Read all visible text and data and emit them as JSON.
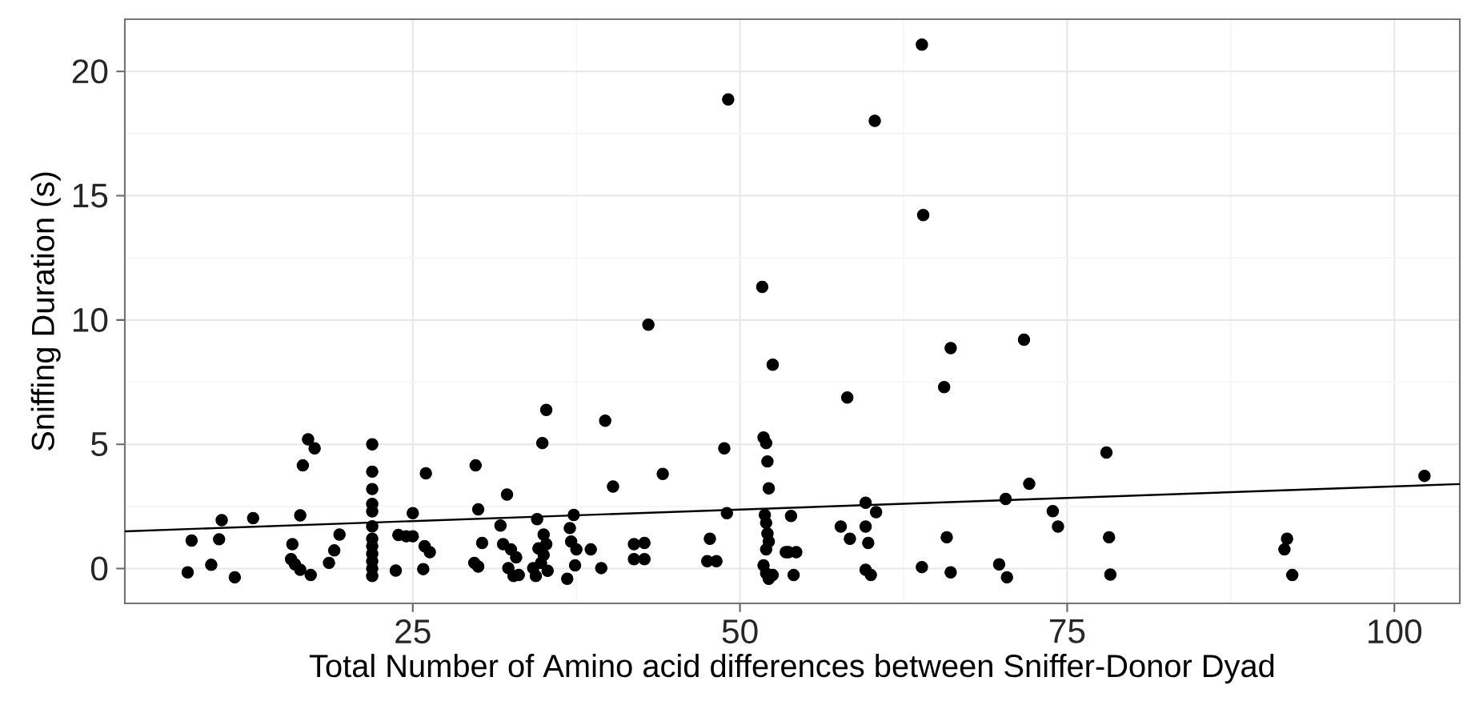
{
  "chart_data": {
    "type": "scatter",
    "xlabel": "Total Number of Amino acid differences between Sniffer-Donor Dyad",
    "ylabel": "Sniffing Duration (s)",
    "xlim": [
      3,
      105
    ],
    "ylim": [
      -1.4,
      22.1
    ],
    "xticks": [
      25,
      50,
      75,
      100
    ],
    "yticks": [
      0,
      5,
      10,
      15,
      20
    ],
    "grid": true,
    "marker": "circle",
    "series": [
      {
        "color": "#000000",
        "x": [
          7.8,
          8.1,
          9.6,
          10.2,
          10.4,
          11.4,
          12.8,
          15.8,
          15.7,
          16.0,
          16.4,
          16.6,
          17.0,
          17.5,
          16.4,
          17.2,
          18.6,
          19.0,
          19.4,
          21.9,
          21.9,
          21.9,
          21.9,
          21.9,
          21.9,
          21.9,
          21.9,
          21.9,
          21.9,
          21.9,
          21.9,
          23.7,
          23.9,
          24.5,
          25.0,
          25.0,
          26.0,
          25.8,
          25.9,
          26.3,
          29.8,
          30.0,
          30.3,
          29.7,
          30.0,
          31.7,
          32.2,
          31.9,
          32.3,
          32.7,
          33.1,
          32.9,
          32.5,
          34.5,
          34.9,
          35.2,
          34.2,
          34.4,
          34.8,
          35.0,
          35.2,
          35.0,
          35.3,
          34.6,
          37.3,
          37.0,
          37.1,
          37.5,
          37.4,
          36.8,
          38.6,
          39.4,
          39.7,
          40.3,
          41.9,
          42.7,
          41.9,
          42.7,
          44.1,
          47.7,
          47.5,
          48.2,
          48.8,
          49.0,
          51.8,
          52.0,
          52.1,
          52.2,
          51.9,
          52.0,
          52.1,
          52.2,
          52.0,
          51.8,
          52.0,
          52.2,
          53.5,
          63.9,
          49.1,
          60.3,
          64.0,
          51.7,
          43.0,
          52.5,
          66.1,
          71.7,
          65.6,
          53.9,
          53.7,
          54.3,
          54.1,
          52.5,
          58.2,
          57.7,
          58.4,
          59.6,
          60.4,
          59.6,
          59.8,
          59.6,
          60.0,
          63.9,
          65.8,
          66.1,
          69.8,
          70.4,
          70.3,
          72.1,
          73.9,
          74.3,
          78.0,
          78.2,
          78.3,
          91.8,
          91.6,
          92.2,
          102.3
        ],
        "values": [
          -0.15,
          1.13,
          0.15,
          1.18,
          1.95,
          -0.35,
          2.03,
          0.98,
          0.38,
          0.17,
          2.14,
          4.15,
          5.2,
          4.84,
          -0.05,
          -0.26,
          0.23,
          0.73,
          1.37,
          5.0,
          3.9,
          3.2,
          2.6,
          2.3,
          1.7,
          1.2,
          0.9,
          0.6,
          0.3,
          0.0,
          -0.3,
          -0.08,
          1.35,
          1.3,
          2.23,
          1.3,
          3.83,
          -0.02,
          0.9,
          0.66,
          4.15,
          2.38,
          1.03,
          0.23,
          0.08,
          1.73,
          2.98,
          0.98,
          0.02,
          -0.3,
          -0.26,
          0.45,
          0.77,
          1.99,
          5.05,
          6.38,
          0.02,
          -0.3,
          0.23,
          0.55,
          0.98,
          1.37,
          -0.09,
          0.81,
          2.16,
          1.63,
          1.09,
          0.77,
          0.13,
          -0.41,
          0.77,
          0.02,
          5.95,
          3.3,
          0.98,
          1.03,
          0.38,
          0.38,
          3.81,
          1.2,
          0.3,
          0.3,
          4.84,
          2.23,
          5.27,
          5.05,
          4.31,
          3.23,
          2.16,
          1.84,
          1.41,
          1.09,
          0.77,
          0.13,
          -0.19,
          -0.41,
          0.66,
          21.08,
          18.87,
          18.01,
          14.22,
          11.33,
          9.81,
          8.2,
          8.87,
          9.21,
          7.3,
          2.12,
          0.66,
          0.66,
          -0.26,
          -0.26,
          6.88,
          1.69,
          1.2,
          2.65,
          2.27,
          1.69,
          1.03,
          -0.05,
          -0.26,
          0.06,
          1.26,
          -0.15,
          0.17,
          -0.35,
          2.8,
          3.41,
          2.31,
          1.69,
          4.67,
          1.26,
          -0.24,
          1.2,
          0.77,
          -0.26,
          3.73
        ]
      },
      {
        "type": "line",
        "color": "#000000",
        "line_style": "solid",
        "marker": "none",
        "x": [
          3,
          105
        ],
        "values": [
          1.5,
          3.4
        ]
      }
    ]
  }
}
